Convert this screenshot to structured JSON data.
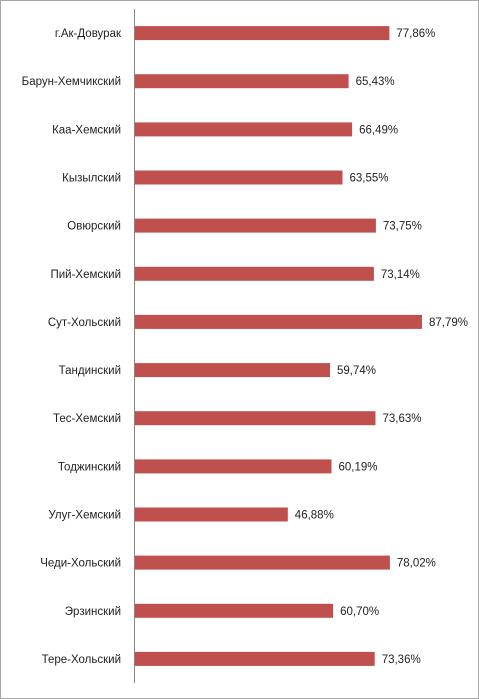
{
  "chart_data": {
    "type": "bar",
    "orientation": "horizontal",
    "categories": [
      "г.Ак-Довурак",
      "Барун-Хемчикский",
      "Каа-Хемский",
      "Кызылский",
      "Овюрский",
      "Пий-Хемский",
      "Сут-Хольский",
      "Тандинский",
      "Тес-Хемский",
      "Тоджинский",
      "Улуг-Хемский",
      "Чеди-Хольский",
      "Эрзинский",
      "Тере-Хольский"
    ],
    "values": [
      77.86,
      65.43,
      66.49,
      63.55,
      73.75,
      73.14,
      87.79,
      59.74,
      73.63,
      60.19,
      46.88,
      78.02,
      60.7,
      73.36
    ],
    "value_labels": [
      "77,86%",
      "65,43%",
      "66,49%",
      "63,55%",
      "73,75%",
      "73,14%",
      "87,79%",
      "59,74%",
      "73,63%",
      "60,19%",
      "46,88%",
      "78,02%",
      "60,70%",
      "73,36%"
    ],
    "bar_color": "#c0504d",
    "axis_color": "#868686",
    "xlim": [
      0,
      100
    ],
    "grid": false,
    "legend": "none",
    "title": "",
    "xlabel": "",
    "ylabel": ""
  }
}
